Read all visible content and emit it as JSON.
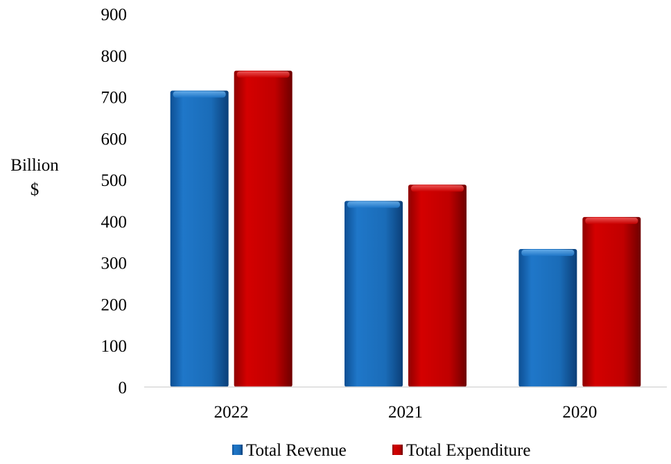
{
  "chart_data": {
    "type": "bar",
    "title": "",
    "xlabel": "",
    "ylabel": [
      "Billion",
      "$"
    ],
    "categories": [
      "2022",
      "2021",
      "2020"
    ],
    "series": [
      {
        "name": "Total Revenue",
        "values": [
          715,
          449,
          333
        ],
        "color": "#1f77c9"
      },
      {
        "name": "Total Expenditure",
        "values": [
          763,
          488,
          410
        ],
        "color": "#cc0000"
      }
    ],
    "ylim": [
      0,
      900
    ],
    "yticks": [
      0,
      100,
      200,
      300,
      400,
      500,
      600,
      700,
      800,
      900
    ],
    "grid": false,
    "legend_position": "bottom"
  }
}
